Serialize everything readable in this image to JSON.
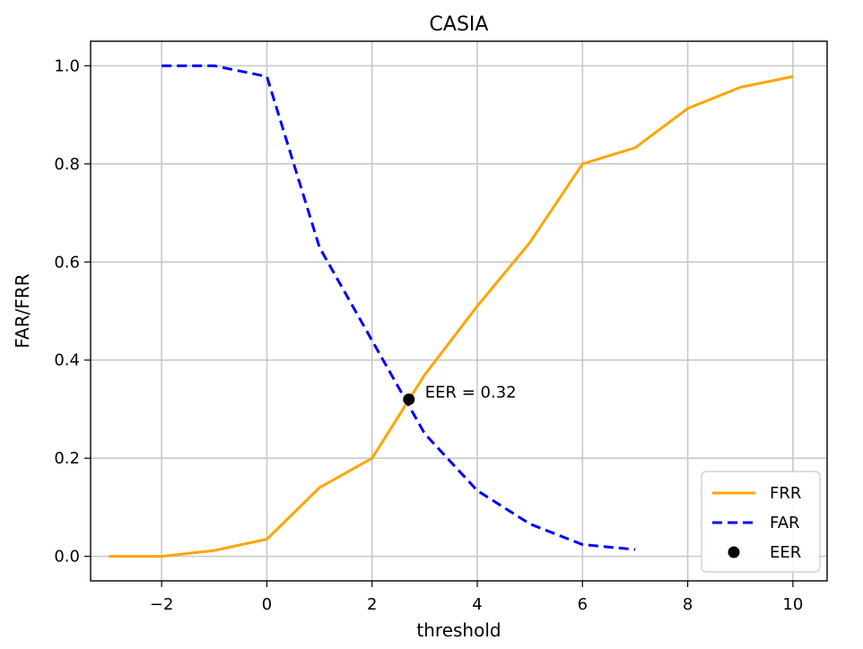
{
  "chart_data": {
    "type": "line",
    "title": "CASIA",
    "xlabel": "threshold",
    "ylabel": "FAR/FRR",
    "xlim": [
      -3.35,
      10.65
    ],
    "ylim": [
      -0.05,
      1.05
    ],
    "xticks": [
      -2,
      0,
      2,
      4,
      6,
      8,
      10
    ],
    "xtick_labels": [
      "−2",
      "0",
      "2",
      "4",
      "6",
      "8",
      "10"
    ],
    "yticks": [
      0.0,
      0.2,
      0.4,
      0.6,
      0.8,
      1.0
    ],
    "ytick_labels": [
      "0.0",
      "0.2",
      "0.4",
      "0.6",
      "0.8",
      "1.0"
    ],
    "grid": true,
    "legend_position": "bottom-right",
    "series": [
      {
        "name": "FRR",
        "style": "solid",
        "color": "#FFA500",
        "x": [
          -3,
          -2,
          -1,
          0,
          1,
          2,
          3,
          4,
          5,
          6,
          7,
          8,
          9,
          10
        ],
        "y": [
          0.0,
          0.0,
          0.012,
          0.035,
          0.14,
          0.2,
          0.37,
          0.51,
          0.64,
          0.8,
          0.833,
          0.913,
          0.956,
          0.978
        ]
      },
      {
        "name": "FAR",
        "style": "dashed",
        "color": "#0000FF",
        "x": [
          -2,
          -1,
          0,
          1,
          2,
          3,
          4,
          5,
          6,
          7
        ],
        "y": [
          1.0,
          1.0,
          0.978,
          0.63,
          0.44,
          0.25,
          0.134,
          0.066,
          0.024,
          0.014
        ]
      },
      {
        "name": "EER",
        "style": "point",
        "color": "#000000",
        "x": [
          2.7
        ],
        "y": [
          0.32
        ]
      }
    ],
    "annotation": {
      "text": "EER = 0.32",
      "x": 2.7,
      "y": 0.32
    }
  }
}
